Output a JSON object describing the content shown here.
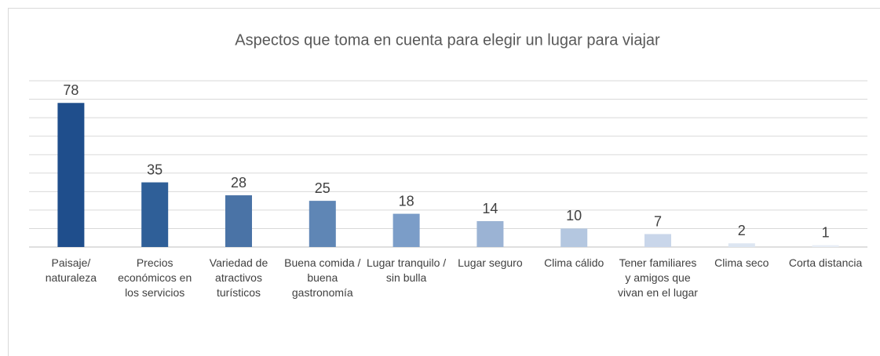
{
  "chart_data": {
    "type": "bar",
    "title": "Aspectos que toma en cuenta para elegir un lugar para viajar",
    "categories": [
      "Paisaje/ naturaleza",
      "Precios económicos en los servicios",
      "Variedad de atractivos turísticos",
      "Buena comida / buena gastronomía",
      "Lugar tranquilo / sin bulla",
      "Lugar seguro",
      "Clima cálido",
      "Tener familiares y amigos que vivan en el lugar",
      "Clima seco",
      "Corta distancia"
    ],
    "values": [
      78,
      35,
      28,
      25,
      18,
      14,
      10,
      7,
      2,
      1
    ],
    "colors": [
      "#1f4e8c",
      "#2f5f98",
      "#4a73a6",
      "#5f86b5",
      "#7b9dc8",
      "#9bb3d4",
      "#b4c7e0",
      "#c9d6ea",
      "#dde6f2",
      "#e8eef6"
    ],
    "ylim": [
      0,
      90
    ],
    "yticks": [
      0,
      10,
      20,
      30,
      40,
      50,
      60,
      70,
      80,
      90
    ],
    "grid": true
  }
}
